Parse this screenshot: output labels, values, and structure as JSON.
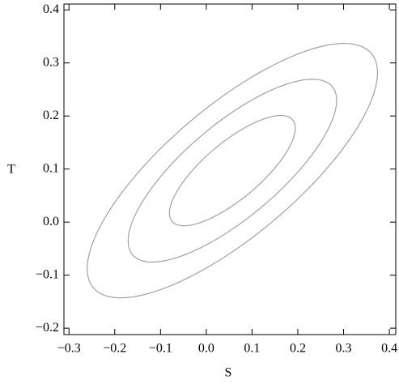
{
  "chart_data": {
    "type": "contour",
    "x_label": "S",
    "y_label": "T",
    "color": "#999999",
    "xlim": [
      -0.311,
      0.414
    ],
    "ylim": [
      -0.212,
      0.411
    ],
    "xticks": [
      {
        "value": -0.3,
        "label": "−0.3"
      },
      {
        "value": -0.2,
        "label": "−0.2"
      },
      {
        "value": -0.1,
        "label": "−0.1"
      },
      {
        "value": 0,
        "label": "0.0"
      },
      0.1,
      0.2,
      0.3,
      0.4
    ],
    "yticks": [
      {
        "value": -0.2,
        "label": "−0.2"
      },
      {
        "value": -0.1,
        "label": "−0.1"
      },
      {
        "value": 0,
        "label": "0.0"
      },
      0.1,
      0.2,
      0.3,
      0.4
    ],
    "contours": [
      {
        "cx": 0.057,
        "cy": 0.097,
        "a": 0.376,
        "b": 0.129,
        "angle": 34.9
      },
      {
        "cx": 0.057,
        "cy": 0.097,
        "a": 0.27,
        "b": 0.093,
        "angle": 34.9
      },
      {
        "cx": 0.057,
        "cy": 0.097,
        "a": 0.163,
        "b": 0.056,
        "angle": 34.9
      }
    ]
  }
}
